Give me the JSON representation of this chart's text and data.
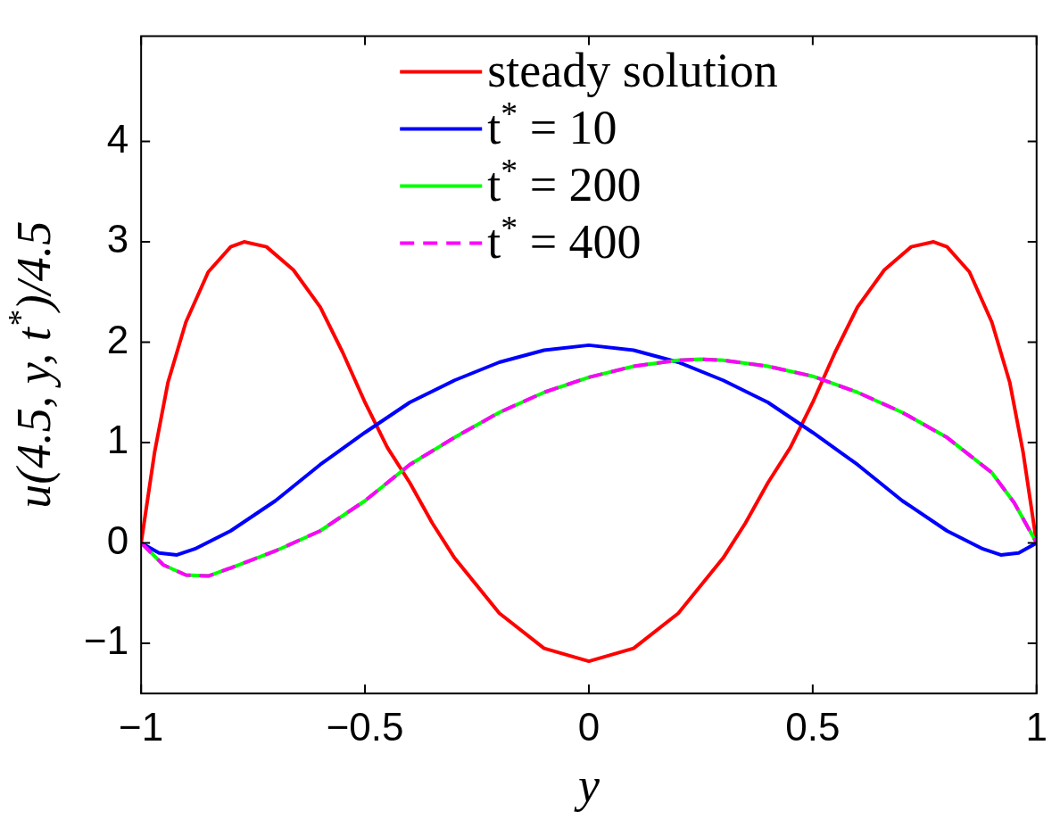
{
  "chart_data": {
    "type": "line",
    "xlabel": "y",
    "ylabel": "u(4.5, y, t$^{*}$)/4.5",
    "xlim": [
      -1,
      1
    ],
    "xticks": [
      -1,
      -0.5,
      0,
      0.5,
      1
    ],
    "ylim": [
      -1.5,
      5.05
    ],
    "yticks": [
      -1,
      0,
      1,
      2,
      3,
      4
    ],
    "grid": false,
    "legend": "top",
    "marker": "none",
    "series": [
      {
        "name": "steady solution",
        "color": "#ff0000",
        "line_style": "solid",
        "x": [
          -1,
          -0.97,
          -0.94,
          -0.9,
          -0.85,
          -0.8,
          -0.77,
          -0.72,
          -0.66,
          -0.6,
          -0.55,
          -0.5,
          -0.45,
          -0.4,
          -0.35,
          -0.3,
          -0.2,
          -0.1,
          0,
          0.1,
          0.2,
          0.3,
          0.35,
          0.4,
          0.45,
          0.5,
          0.55,
          0.6,
          0.66,
          0.72,
          0.77,
          0.8,
          0.85,
          0.9,
          0.94,
          0.97,
          1
        ],
        "values": [
          0,
          0.9,
          1.6,
          2.2,
          2.7,
          2.95,
          3.0,
          2.95,
          2.72,
          2.35,
          1.9,
          1.4,
          0.95,
          0.6,
          0.2,
          -0.15,
          -0.7,
          -1.05,
          -1.18,
          -1.05,
          -0.7,
          -0.15,
          0.2,
          0.6,
          0.95,
          1.4,
          1.9,
          2.35,
          2.72,
          2.95,
          3.0,
          2.95,
          2.7,
          2.2,
          1.6,
          0.9,
          0
        ]
      },
      {
        "name": "t$^{*}$ = 10",
        "color": "#0000ff",
        "line_style": "solid",
        "x": [
          -1,
          -0.96,
          -0.92,
          -0.88,
          -0.8,
          -0.7,
          -0.6,
          -0.5,
          -0.4,
          -0.3,
          -0.2,
          -0.1,
          0,
          0.1,
          0.2,
          0.3,
          0.4,
          0.5,
          0.6,
          0.7,
          0.8,
          0.88,
          0.92,
          0.96,
          1
        ],
        "values": [
          0,
          -0.1,
          -0.12,
          -0.06,
          0.12,
          0.42,
          0.78,
          1.1,
          1.4,
          1.62,
          1.8,
          1.92,
          1.97,
          1.92,
          1.8,
          1.62,
          1.4,
          1.1,
          0.78,
          0.42,
          0.12,
          -0.06,
          -0.12,
          -0.1,
          0
        ]
      },
      {
        "name": "t$^{*}$ = 200",
        "color": "#00ff00",
        "line_style": "solid",
        "x": [
          -1,
          -0.95,
          -0.9,
          -0.85,
          -0.8,
          -0.7,
          -0.6,
          -0.5,
          -0.4,
          -0.3,
          -0.2,
          -0.1,
          0,
          0.1,
          0.2,
          0.25,
          0.3,
          0.4,
          0.5,
          0.6,
          0.7,
          0.8,
          0.9,
          0.95,
          1
        ],
        "values": [
          0,
          -0.22,
          -0.32,
          -0.33,
          -0.25,
          -0.08,
          0.12,
          0.42,
          0.78,
          1.05,
          1.3,
          1.5,
          1.65,
          1.76,
          1.82,
          1.83,
          1.82,
          1.76,
          1.66,
          1.5,
          1.3,
          1.05,
          0.7,
          0.4,
          0
        ]
      },
      {
        "name": "t$^{*}$ = 400",
        "color": "#ff00ff",
        "line_style": "dashed",
        "x": [
          -1,
          -0.95,
          -0.9,
          -0.85,
          -0.8,
          -0.7,
          -0.6,
          -0.5,
          -0.4,
          -0.3,
          -0.2,
          -0.1,
          0,
          0.1,
          0.2,
          0.25,
          0.3,
          0.4,
          0.5,
          0.6,
          0.7,
          0.8,
          0.9,
          0.95,
          1
        ],
        "values": [
          0,
          -0.22,
          -0.32,
          -0.33,
          -0.25,
          -0.08,
          0.12,
          0.42,
          0.78,
          1.05,
          1.3,
          1.5,
          1.65,
          1.76,
          1.82,
          1.83,
          1.82,
          1.76,
          1.66,
          1.5,
          1.3,
          1.05,
          0.7,
          0.4,
          0
        ]
      }
    ]
  }
}
